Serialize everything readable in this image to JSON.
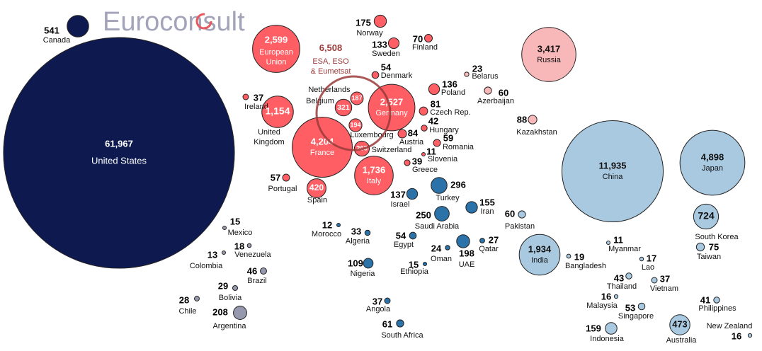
{
  "logo": {
    "text": "Euroconsult",
    "accent": "#e8585e"
  },
  "chart_data": {
    "type": "bubble",
    "title": "",
    "group_label": {
      "value": "6,508",
      "line1": "ESA, ESO",
      "line2": "& Eumetsat",
      "color": "#9b3a3a"
    },
    "colors": {
      "north_america": "#0e1a4f",
      "latin_america": "#9698ad",
      "europe": "#ff5f64",
      "cis": "#f8b8ba",
      "middle_east_africa": "#2b72a9",
      "asia_pacific": "#a9c9e1"
    },
    "points": [
      {
        "name": "Canada",
        "value": 541,
        "group": "north_america"
      },
      {
        "name": "United States",
        "value": 61967,
        "group": "north_america"
      },
      {
        "name": "Mexico",
        "value": 15,
        "group": "latin_america"
      },
      {
        "name": "Venezuela",
        "value": 18,
        "group": "latin_america"
      },
      {
        "name": "Colombia",
        "value": 13,
        "group": "latin_america"
      },
      {
        "name": "Brazil",
        "value": 46,
        "group": "latin_america"
      },
      {
        "name": "Bolivia",
        "value": 29,
        "group": "latin_america"
      },
      {
        "name": "Chile",
        "value": 28,
        "group": "latin_america"
      },
      {
        "name": "Argentina",
        "value": 208,
        "group": "latin_america"
      },
      {
        "name": "European Union",
        "value": 2599,
        "group": "europe"
      },
      {
        "name": "Norway",
        "value": 175,
        "group": "europe"
      },
      {
        "name": "Sweden",
        "value": 133,
        "group": "europe"
      },
      {
        "name": "Finland",
        "value": 70,
        "group": "europe"
      },
      {
        "name": "Denmark",
        "value": 54,
        "group": "europe"
      },
      {
        "name": "Belarus",
        "value": 23,
        "group": "cis"
      },
      {
        "name": "Poland",
        "value": 136,
        "group": "europe"
      },
      {
        "name": "Azerbaijan",
        "value": 60,
        "group": "cis"
      },
      {
        "name": "Russia",
        "value": 3417,
        "group": "cis"
      },
      {
        "name": "Kazakhstan",
        "value": 88,
        "group": "cis"
      },
      {
        "name": "Ireland",
        "value": 37,
        "group": "europe"
      },
      {
        "name": "United Kingdom",
        "value": 1154,
        "group": "europe"
      },
      {
        "name": "Netherlands",
        "value": 187,
        "group": "europe"
      },
      {
        "name": "Belgium",
        "value": 321,
        "group": "europe"
      },
      {
        "name": "Germany",
        "value": 2527,
        "group": "europe"
      },
      {
        "name": "Czech Rep.",
        "value": 81,
        "group": "europe"
      },
      {
        "name": "Luxembourg",
        "value": 194,
        "group": "europe"
      },
      {
        "name": "Hungary",
        "value": 42,
        "group": "europe"
      },
      {
        "name": "Austria",
        "value": 84,
        "group": "europe"
      },
      {
        "name": "Romania",
        "value": 59,
        "group": "europe"
      },
      {
        "name": "France",
        "value": 4204,
        "group": "europe"
      },
      {
        "name": "Switzerland",
        "value": 263,
        "group": "europe"
      },
      {
        "name": "Slovenia",
        "value": 11,
        "group": "europe"
      },
      {
        "name": "Greece",
        "value": 39,
        "group": "europe"
      },
      {
        "name": "Italy",
        "value": 1736,
        "group": "europe"
      },
      {
        "name": "Portugal",
        "value": 57,
        "group": "europe"
      },
      {
        "name": "Spain",
        "value": 420,
        "group": "europe"
      },
      {
        "name": "Israel",
        "value": 137,
        "group": "middle_east_africa"
      },
      {
        "name": "Turkey",
        "value": 296,
        "group": "middle_east_africa"
      },
      {
        "name": "Iran",
        "value": 155,
        "group": "middle_east_africa"
      },
      {
        "name": "Saudi Arabia",
        "value": 250,
        "group": "middle_east_africa"
      },
      {
        "name": "Morocco",
        "value": 12,
        "group": "middle_east_africa"
      },
      {
        "name": "Algeria",
        "value": 33,
        "group": "middle_east_africa"
      },
      {
        "name": "Egypt",
        "value": 54,
        "group": "middle_east_africa"
      },
      {
        "name": "Oman",
        "value": 24,
        "group": "middle_east_africa"
      },
      {
        "name": "UAE",
        "value": 198,
        "group": "middle_east_africa"
      },
      {
        "name": "Qatar",
        "value": 27,
        "group": "middle_east_africa"
      },
      {
        "name": "Ethiopia",
        "value": 15,
        "group": "middle_east_africa"
      },
      {
        "name": "Nigeria",
        "value": 109,
        "group": "middle_east_africa"
      },
      {
        "name": "Angola",
        "value": 37,
        "group": "middle_east_africa"
      },
      {
        "name": "South Africa",
        "value": 61,
        "group": "middle_east_africa"
      },
      {
        "name": "China",
        "value": 11935,
        "group": "asia_pacific"
      },
      {
        "name": "Japan",
        "value": 4898,
        "group": "asia_pacific"
      },
      {
        "name": "Pakistan",
        "value": 60,
        "group": "asia_pacific"
      },
      {
        "name": "India",
        "value": 1934,
        "group": "asia_pacific"
      },
      {
        "name": "Bangladesh",
        "value": 19,
        "group": "asia_pacific"
      },
      {
        "name": "Myanmar",
        "value": 11,
        "group": "asia_pacific"
      },
      {
        "name": "Lao",
        "value": 17,
        "group": "asia_pacific"
      },
      {
        "name": "South Korea",
        "value": 724,
        "group": "asia_pacific"
      },
      {
        "name": "Taiwan",
        "value": 75,
        "group": "asia_pacific"
      },
      {
        "name": "Thailand",
        "value": 43,
        "group": "asia_pacific"
      },
      {
        "name": "Vietnam",
        "value": 37,
        "group": "asia_pacific"
      },
      {
        "name": "Malaysia",
        "value": 16,
        "group": "asia_pacific"
      },
      {
        "name": "Singapore",
        "value": 53,
        "group": "asia_pacific"
      },
      {
        "name": "Philippines",
        "value": 41,
        "group": "asia_pacific"
      },
      {
        "name": "Indonesia",
        "value": 159,
        "group": "asia_pacific"
      },
      {
        "name": "Australia",
        "value": 473,
        "group": "asia_pacific"
      },
      {
        "name": "New Zealand",
        "value": 16,
        "group": "asia_pacific"
      }
    ]
  }
}
